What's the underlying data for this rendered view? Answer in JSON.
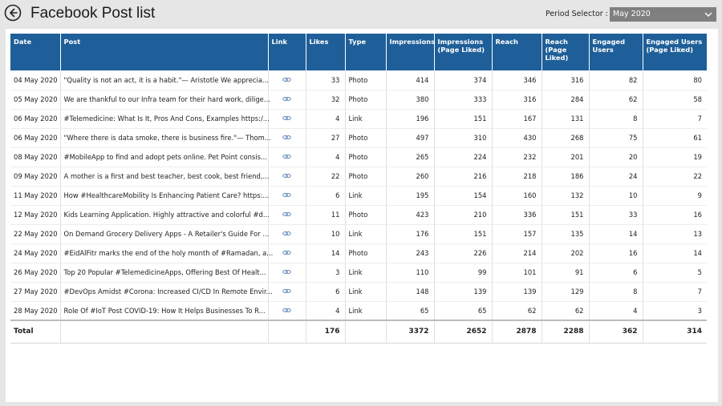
{
  "header": {
    "title": "Facebook Post list",
    "period_label": "Period Selector :",
    "period_value": "May 2020"
  },
  "table": {
    "columns": [
      "Date",
      "Post",
      "Link",
      "Likes",
      "Type",
      "Impressions",
      "Impressions (Page Liked)",
      "Reach",
      "Reach (Page Liked)",
      "Engaged Users",
      "Engaged Users (Page Liked)"
    ],
    "rows": [
      {
        "date": "04 May 2020",
        "post": "\"Quality is not an act, it is a habit.\"— Aristotle  We apprecia...",
        "likes": "33",
        "type": "Photo",
        "impressions": "414",
        "impressions_pl": "374",
        "reach": "346",
        "reach_pl": "316",
        "engaged": "82",
        "engaged_pl": "80"
      },
      {
        "date": "05 May 2020",
        "post": "We are thankful to our Infra team for their hard work, dilige...",
        "likes": "32",
        "type": "Photo",
        "impressions": "380",
        "impressions_pl": "333",
        "reach": "316",
        "reach_pl": "284",
        "engaged": "62",
        "engaged_pl": "58"
      },
      {
        "date": "06 May 2020",
        "post": "#Telemedicine: What Is It, Pros And Cons, Examples https:/...",
        "likes": "4",
        "type": "Link",
        "impressions": "196",
        "impressions_pl": "151",
        "reach": "167",
        "reach_pl": "131",
        "engaged": "8",
        "engaged_pl": "7"
      },
      {
        "date": "06 May 2020",
        "post": "\"Where there is data smoke, there is business fire.\"— Thom...",
        "likes": "27",
        "type": "Photo",
        "impressions": "497",
        "impressions_pl": "310",
        "reach": "430",
        "reach_pl": "268",
        "engaged": "75",
        "engaged_pl": "61"
      },
      {
        "date": "08 May 2020",
        "post": "#MobileApp to find and adopt pets online.  Pet Point consis...",
        "likes": "4",
        "type": "Photo",
        "impressions": "265",
        "impressions_pl": "224",
        "reach": "232",
        "reach_pl": "201",
        "engaged": "20",
        "engaged_pl": "19"
      },
      {
        "date": "09 May 2020",
        "post": "A mother is a first and best teacher, best cook, best friend,...",
        "likes": "22",
        "type": "Photo",
        "impressions": "260",
        "impressions_pl": "216",
        "reach": "218",
        "reach_pl": "186",
        "engaged": "24",
        "engaged_pl": "22"
      },
      {
        "date": "11 May 2020",
        "post": "How #HealthcareMobility Is Enhancing Patient Care?  https:...",
        "likes": "6",
        "type": "Link",
        "impressions": "195",
        "impressions_pl": "154",
        "reach": "160",
        "reach_pl": "132",
        "engaged": "10",
        "engaged_pl": "9"
      },
      {
        "date": "12 May 2020",
        "post": "Kids Learning Application.  Highly attractive and colorful #d...",
        "likes": "11",
        "type": "Photo",
        "impressions": "423",
        "impressions_pl": "210",
        "reach": "336",
        "reach_pl": "151",
        "engaged": "33",
        "engaged_pl": "16"
      },
      {
        "date": "22 May 2020",
        "post": "On Demand Grocery Delivery Apps - A Retailer's Guide For ...",
        "likes": "10",
        "type": "Link",
        "impressions": "176",
        "impressions_pl": "151",
        "reach": "157",
        "reach_pl": "135",
        "engaged": "14",
        "engaged_pl": "13"
      },
      {
        "date": "24 May 2020",
        "post": "#EidAlFitr marks the end of the holy month of #Ramadan, a...",
        "likes": "14",
        "type": "Photo",
        "impressions": "243",
        "impressions_pl": "226",
        "reach": "214",
        "reach_pl": "202",
        "engaged": "16",
        "engaged_pl": "14"
      },
      {
        "date": "26 May 2020",
        "post": "Top 20 Popular #TelemedicineApps, Offering Best Of Healt...",
        "likes": "3",
        "type": "Link",
        "impressions": "110",
        "impressions_pl": "99",
        "reach": "101",
        "reach_pl": "91",
        "engaged": "6",
        "engaged_pl": "5"
      },
      {
        "date": "27 May 2020",
        "post": "#DevOps Amidst #Corona: Increased CI/CD In Remote Envir...",
        "likes": "6",
        "type": "Link",
        "impressions": "148",
        "impressions_pl": "139",
        "reach": "139",
        "reach_pl": "129",
        "engaged": "8",
        "engaged_pl": "7"
      },
      {
        "date": "28 May 2020",
        "post": "Role Of #IoT Post COVID-19: How It Helps Businesses To R...",
        "likes": "4",
        "type": "Link",
        "impressions": "65",
        "impressions_pl": "65",
        "reach": "62",
        "reach_pl": "62",
        "engaged": "4",
        "engaged_pl": "3"
      }
    ],
    "total": {
      "label": "Total",
      "likes": "176",
      "impressions": "3372",
      "impressions_pl": "2652",
      "reach": "2878",
      "reach_pl": "2288",
      "engaged": "362",
      "engaged_pl": "314"
    }
  },
  "colors": {
    "header_bg": "#1f5f99",
    "link_icon": "#6a8fb8"
  },
  "icons": {
    "back": "back-arrow-icon",
    "dropdown": "chevron-down-icon",
    "link": "link-icon"
  }
}
